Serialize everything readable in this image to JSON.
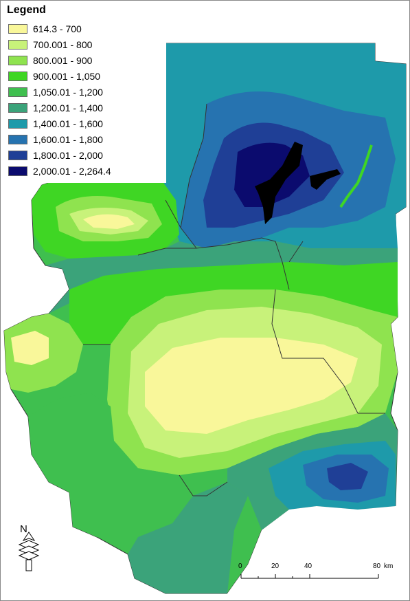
{
  "legend": {
    "title": "Legend",
    "classes": [
      {
        "label": "614.3 - 700",
        "color": "#f9f79a"
      },
      {
        "label": "700.001 - 800",
        "color": "#c8f27a"
      },
      {
        "label": "800.001 - 900",
        "color": "#8fe34f"
      },
      {
        "label": "900.001 - 1,050",
        "color": "#3fd624"
      },
      {
        "label": "1,050.01 - 1,200",
        "color": "#3fbf4f"
      },
      {
        "label": "1,200.01 - 1,400",
        "color": "#3ba37a"
      },
      {
        "label": "1,400.01 - 1,600",
        "color": "#1e9aaa"
      },
      {
        "label": "1,600.01 - 1,800",
        "color": "#2673b0"
      },
      {
        "label": "1,800.01 - 2,000",
        "color": "#1f3f96"
      },
      {
        "label": "2,000.01 - 2,264.4",
        "color": "#0b0b6e"
      }
    ]
  },
  "north_arrow": {
    "label": "N"
  },
  "scale_bar": {
    "ticks": [
      "0",
      "20",
      "40",
      "80"
    ],
    "unit": "km"
  }
}
